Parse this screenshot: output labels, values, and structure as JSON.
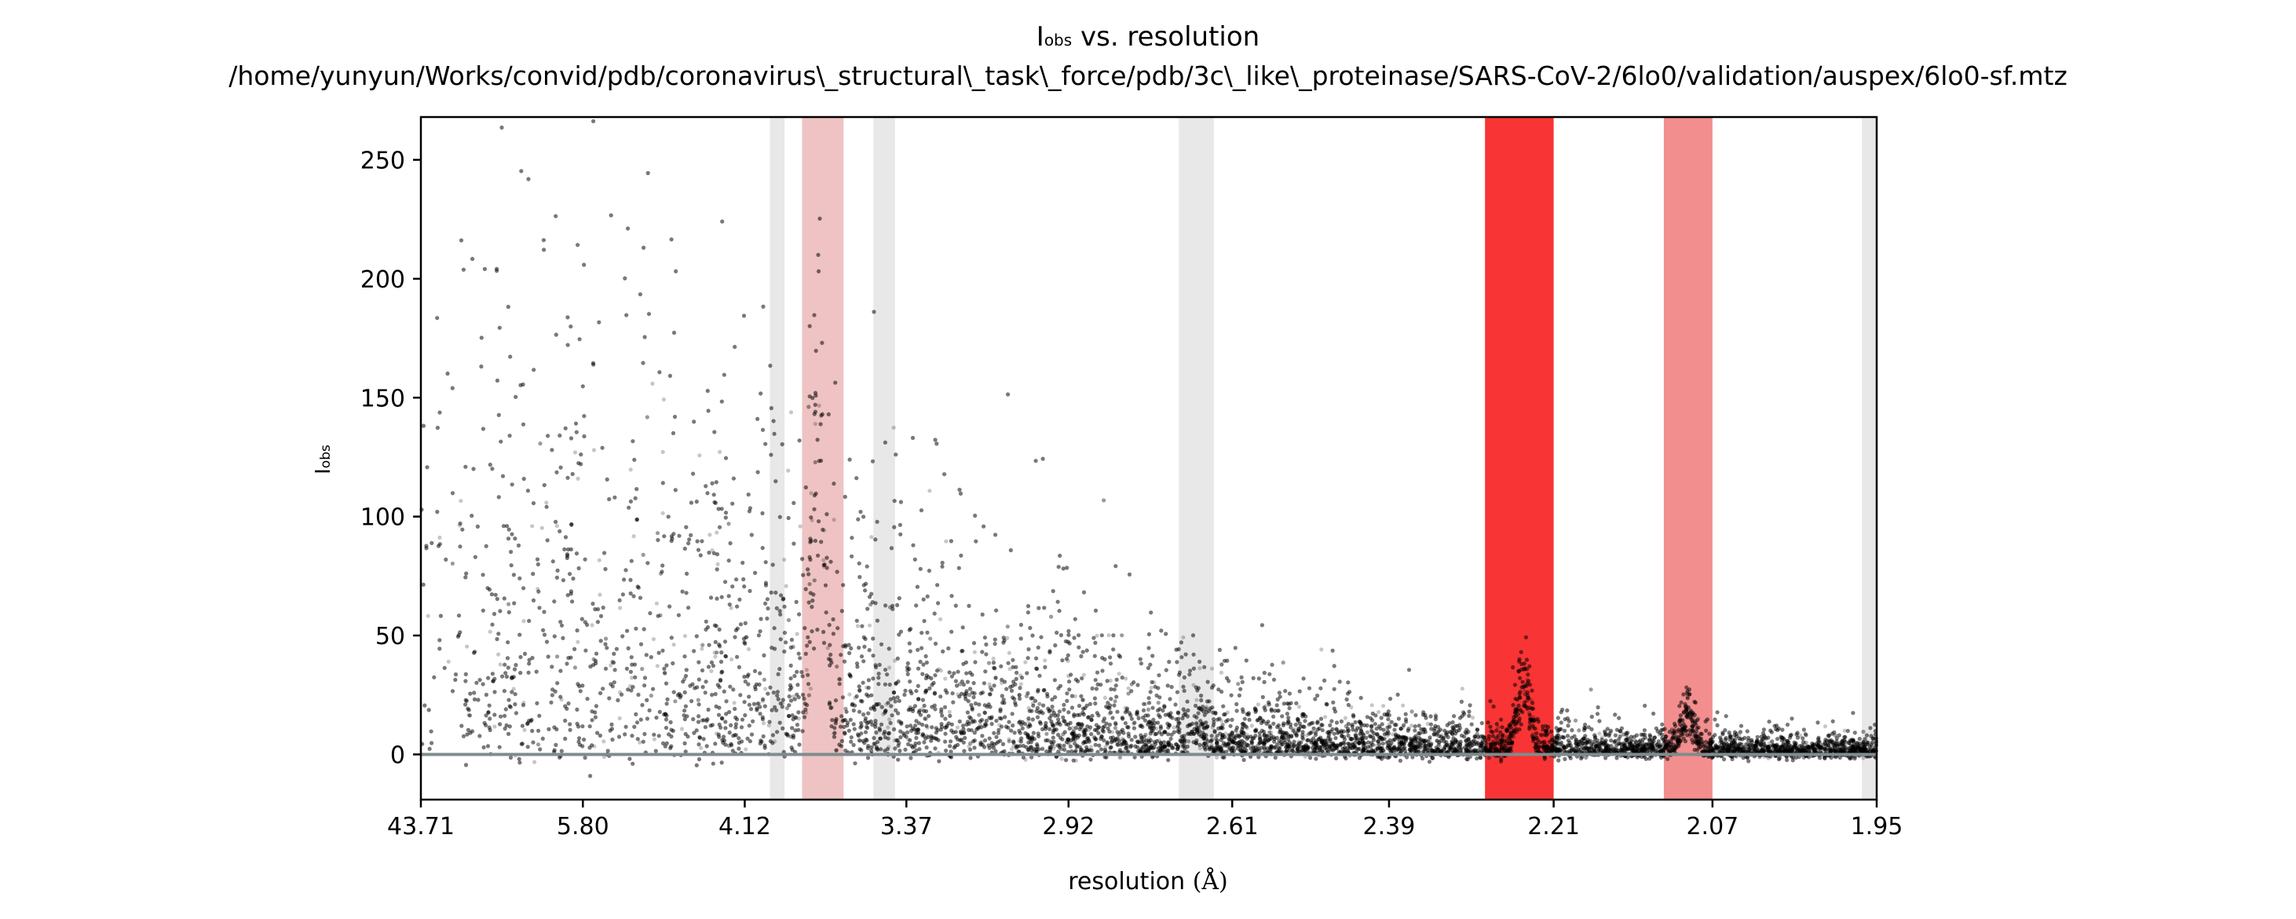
{
  "chart_data": {
    "type": "scatter",
    "title_main": "I",
    "title_sub": "obs",
    "title_rest": " vs. resolution",
    "subtitle": "/home/yunyun/Works/convid/pdb/coronavirus\\_structural\\_task\\_force/pdb/3c\\_like\\_proteinase/SARS-CoV-2/6lo0/validation/auspex/6lo0-sf.mtz",
    "xlabel_main": "resolution ",
    "xlabel_unit": "(Å)",
    "ylabel_main": "I",
    "ylabel_sub": "obs",
    "x_scale": "1/d^2",
    "xlim": [
      43.71,
      1.95
    ],
    "ylim": [
      -19,
      268
    ],
    "x_ticks": [
      "43.71",
      "5.80",
      "4.12",
      "3.37",
      "2.92",
      "2.61",
      "2.39",
      "2.21",
      "2.07",
      "1.95"
    ],
    "y_ticks": [
      0,
      50,
      100,
      150,
      200,
      250
    ],
    "zero_line": 0,
    "ice_ring_bands": [
      {
        "from": 3.97,
        "to": 3.89,
        "color": "#e8e8e8"
      },
      {
        "from": 3.8,
        "to": 3.61,
        "color": "#efc3c3"
      },
      {
        "from": 3.49,
        "to": 3.41,
        "color": "#e8e8e8"
      },
      {
        "from": 2.7,
        "to": 2.64,
        "color": "#e8e8e8"
      },
      {
        "from": 2.28,
        "to": 2.21,
        "color": "#f83434"
      },
      {
        "from": 2.11,
        "to": 2.07,
        "color": "#f28e8e"
      },
      {
        "from": 1.96,
        "to": 1.95,
        "color": "#e8e8e8"
      }
    ],
    "envelope": [
      {
        "x": 43.71,
        "y": 260
      },
      {
        "x": 5.8,
        "y": 200
      },
      {
        "x": 4.12,
        "y": 130
      },
      {
        "x": 3.37,
        "y": 90
      },
      {
        "x": 2.92,
        "y": 55
      },
      {
        "x": 2.61,
        "y": 30
      },
      {
        "x": 2.39,
        "y": 20
      },
      {
        "x": 2.21,
        "y": 14
      },
      {
        "x": 2.07,
        "y": 10
      },
      {
        "x": 1.95,
        "y": 8
      }
    ],
    "peaks": [
      {
        "x": 3.72,
        "height": 130
      },
      {
        "x": 2.24,
        "height": 38
      },
      {
        "x": 2.09,
        "height": 18
      },
      {
        "x": 2.67,
        "height": 10
      }
    ],
    "point_color": "#000000",
    "point_alpha": 0.22,
    "grid": false,
    "legend": "none"
  }
}
